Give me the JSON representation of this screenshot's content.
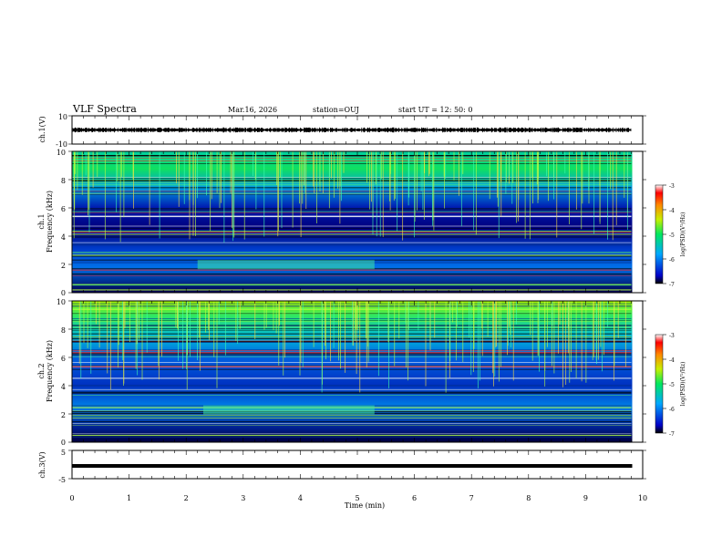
{
  "header": {
    "title": "VLF Spectra",
    "date": "Mar.16, 2026",
    "station": "station=OUJ",
    "start": "start  UT =   12: 50: 0"
  },
  "chart_data": [
    {
      "type": "line",
      "panel": "ch1-waveform",
      "ylabel": "ch.1(V)",
      "ylim": [
        -10,
        10
      ],
      "yticks": [
        "10",
        "-10"
      ],
      "x": [
        0,
        9.8
      ],
      "baseline": 0
    },
    {
      "type": "heatmap",
      "panel": "ch1-spectrogram",
      "ylabel_top": "ch.1",
      "ylabel": "Frequency (kHz)",
      "ylim": [
        0,
        10
      ],
      "yticks": [
        "0",
        "2",
        "4",
        "6",
        "8",
        "10"
      ],
      "xlim": [
        0,
        10
      ],
      "data_end_min": 9.8,
      "colorbar": {
        "label": "log(PSD)(V²/Hz)",
        "range": [
          -7,
          -3
        ],
        "ticks": [
          "-3",
          "-4",
          "-5",
          "-6",
          "-7"
        ]
      }
    },
    {
      "type": "heatmap",
      "panel": "ch2-spectrogram",
      "ylabel_top": "ch.2",
      "ylabel": "Frequency (kHz)",
      "ylim": [
        0,
        10
      ],
      "yticks": [
        "0",
        "2",
        "4",
        "6",
        "8",
        "10"
      ],
      "xlim": [
        0,
        10
      ],
      "data_end_min": 9.8,
      "colorbar": {
        "label": "log(PSD)(V²/Hz)",
        "range": [
          -7,
          -3
        ],
        "ticks": [
          "-3",
          "-4",
          "-5",
          "-6",
          "-7"
        ]
      }
    },
    {
      "type": "line",
      "panel": "ch3-waveform",
      "ylabel": "ch.3(V)",
      "ylim": [
        -5,
        5
      ],
      "yticks": [
        "5",
        "-5"
      ],
      "x": [
        0,
        9.8
      ],
      "baseline": -1.5
    }
  ],
  "xaxis": {
    "label": "Time  (min)",
    "ticks": [
      "0",
      "1",
      "2",
      "3",
      "4",
      "5",
      "6",
      "7",
      "8",
      "9",
      "10"
    ]
  }
}
